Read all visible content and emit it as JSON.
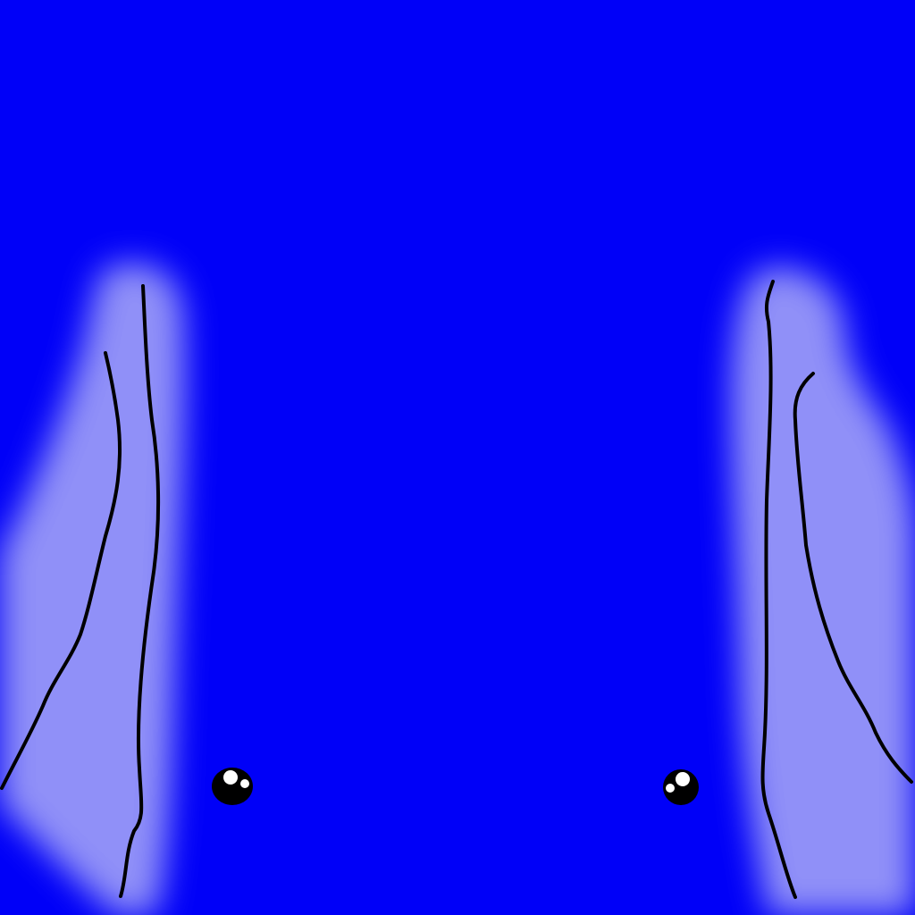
{
  "scene": {
    "colors": {
      "background": "#0000f8",
      "light_patch": "#9090f8",
      "line": "#000000",
      "eye": "#000000",
      "eye_highlight": "#ffffff"
    },
    "shapes": [
      "left-light-patch",
      "right-light-patch",
      "left-line",
      "right-line",
      "left-eye",
      "right-eye"
    ]
  }
}
